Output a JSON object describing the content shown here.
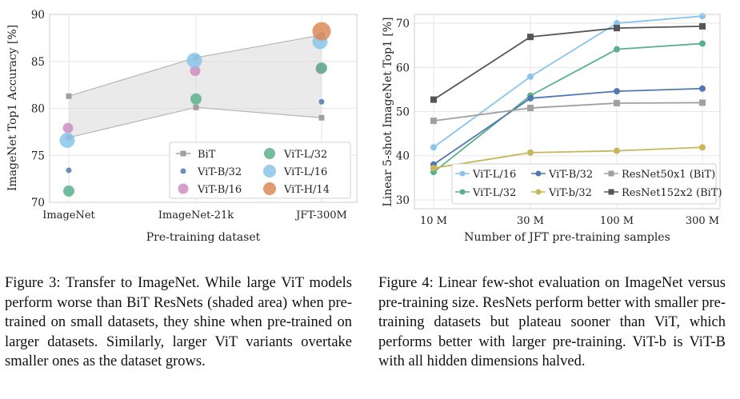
{
  "chart_data": [
    {
      "type": "scatter",
      "title": "",
      "xlabel": "Pre-training dataset",
      "ylabel": "ImageNet Top1 Accuracy [%]",
      "categories": [
        "ImageNet",
        "ImageNet-21k",
        "JFT-300M"
      ],
      "ylim": [
        70,
        90
      ],
      "yticks": [
        70,
        75,
        80,
        85,
        90
      ],
      "grid": true,
      "legend_position": "bottom-right",
      "bit_band": {
        "name": "BiT",
        "upper": [
          81.3,
          85.4,
          87.8
        ],
        "lower": [
          76.9,
          80.1,
          79.0
        ]
      },
      "series": [
        {
          "name": "BiT",
          "color": "#a0a0a0",
          "values": [
            [
              81.3,
              76.9
            ],
            [
              85.4,
              80.1
            ],
            [
              87.8,
              79.0
            ]
          ]
        },
        {
          "name": "ViT-B/32",
          "color": "#4f79b0",
          "values": [
            73.4,
            null,
            80.7
          ]
        },
        {
          "name": "ViT-B/16",
          "color": "#cc8ec0",
          "values": [
            77.9,
            84.0,
            84.2
          ]
        },
        {
          "name": "ViT-L/32",
          "color": "#5bb08d",
          "values": [
            71.2,
            81.0,
            84.3
          ]
        },
        {
          "name": "ViT-L/16",
          "color": "#8ac4ea",
          "values": [
            76.6,
            85.1,
            87.1
          ]
        },
        {
          "name": "ViT-H/14",
          "color": "#db8a58",
          "values": [
            null,
            null,
            88.2
          ]
        }
      ],
      "legend": [
        "BiT",
        "ViT-L/32",
        "ViT-B/32",
        "ViT-L/16",
        "ViT-B/16",
        "ViT-H/14"
      ]
    },
    {
      "type": "line",
      "title": "",
      "xlabel": "Number of JFT pre-training samples",
      "ylabel": "Linear 5-shot ImageNet Top1 [%]",
      "x": [
        "10 M",
        "30 M",
        "100 M",
        "300 M"
      ],
      "ylim": [
        28,
        72
      ],
      "yticks": [
        30,
        40,
        50,
        60,
        70
      ],
      "grid": true,
      "legend_position": "bottom-right",
      "series": [
        {
          "name": "ViT-L/16",
          "color": "#8ac4ea",
          "marker": "circle",
          "values": [
            41.9,
            57.9,
            70.0,
            71.6
          ]
        },
        {
          "name": "ViT-L/32",
          "color": "#5bb08d",
          "marker": "circle",
          "values": [
            36.3,
            53.6,
            64.1,
            65.4
          ]
        },
        {
          "name": "ViT-B/32",
          "color": "#4f79b0",
          "marker": "circle",
          "values": [
            38.0,
            53.0,
            54.6,
            55.2
          ]
        },
        {
          "name": "ViT-b/32",
          "color": "#c9b55a",
          "marker": "circle",
          "values": [
            37.2,
            40.7,
            41.1,
            41.9
          ]
        },
        {
          "name": "ResNet50x1 (BiT)",
          "color": "#a0a0a0",
          "marker": "square",
          "values": [
            47.9,
            50.8,
            51.9,
            52.0
          ]
        },
        {
          "name": "ResNet152x2 (BiT)",
          "color": "#555555",
          "marker": "square",
          "values": [
            52.7,
            66.9,
            68.9,
            69.3
          ]
        }
      ],
      "legend": [
        "ViT-L/16",
        "ViT-B/32",
        "ResNet50x1 (BiT)",
        "ViT-L/32",
        "ViT-b/32",
        "ResNet152x2 (BiT)"
      ]
    }
  ],
  "captions": {
    "fig3": "Figure 3:  Transfer to ImageNet.  While large ViT models perform worse than BiT ResNets (shaded area) when pre-trained on small datasets, they shine when pre-trained on larger datasets. Similarly, larger ViT variants overtake smaller ones as the dataset grows.",
    "fig4": "Figure 4: Linear few-shot evaluation on ImageNet versus pre-training size.  ResNets perform better with smaller pre-training datasets but plateau sooner than ViT, which performs better with larger pre-training. ViT-b is ViT-B with all hidden dimensions halved."
  }
}
